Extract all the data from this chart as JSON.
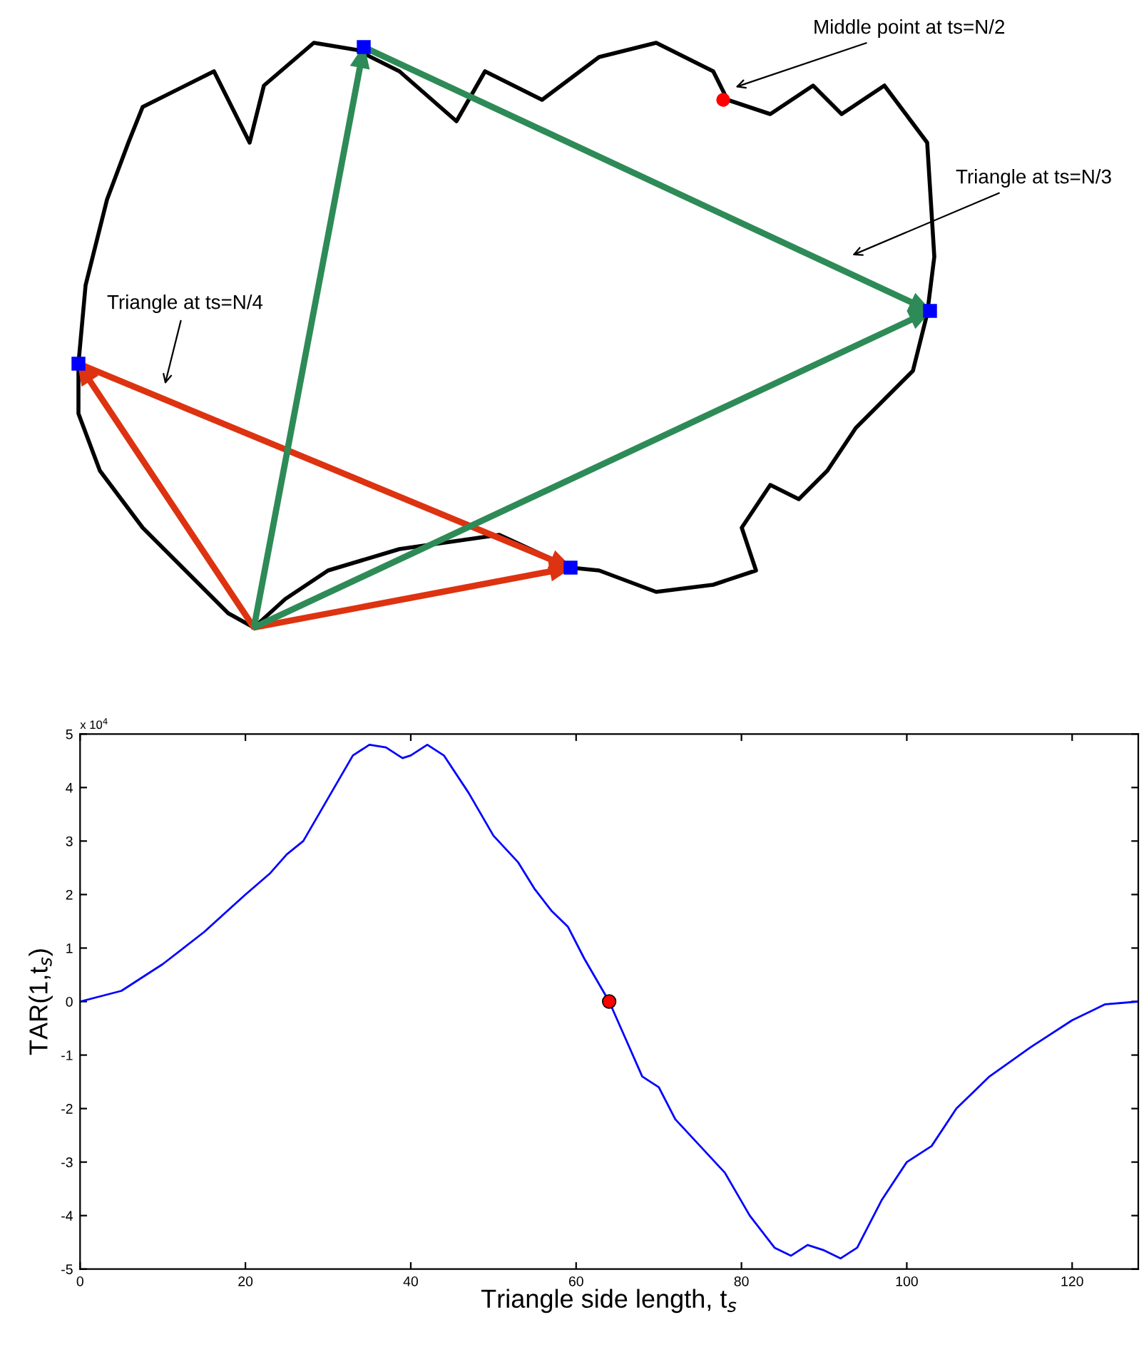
{
  "chart_data": [
    {
      "type": "other",
      "annotations": [
        "Middle point at ts=N/2",
        "Triangle at ts=N/3",
        "Triangle at ts=N/4"
      ]
    },
    {
      "type": "line",
      "xlabel": "Triangle side length, t$_{s}$",
      "ylabel": "TAR(1,t$_{s}$)",
      "annotations": [
        "x 10$^{4}$"
      ],
      "xlim": [
        0,
        128
      ],
      "xticks": [
        0,
        20,
        40,
        60,
        80,
        100,
        120
      ],
      "ylim": [
        -5,
        5
      ],
      "yticks": [
        -5,
        -4,
        -3,
        -2,
        -1,
        0,
        1,
        2,
        3,
        4,
        5
      ],
      "grid": false,
      "legend": false,
      "series": [
        {
          "type": "line",
          "color": "#0000ff",
          "x": [
            0,
            5,
            10,
            15,
            20,
            23,
            25,
            27,
            30,
            33,
            35,
            37,
            39,
            40,
            42,
            44,
            47,
            50,
            53,
            55,
            57,
            59,
            61,
            64,
            66,
            68,
            70,
            72,
            75,
            78,
            81,
            84,
            86,
            88,
            90,
            92,
            94,
            97,
            100,
            103,
            106,
            110,
            115,
            120,
            124,
            128
          ],
          "values": [
            0,
            0.2,
            0.7,
            1.3,
            2.0,
            2.4,
            2.75,
            3.0,
            3.8,
            4.6,
            4.8,
            4.75,
            4.55,
            4.6,
            4.8,
            4.6,
            3.9,
            3.1,
            2.6,
            2.1,
            1.7,
            1.4,
            0.8,
            0,
            -0.7,
            -1.4,
            -1.6,
            -2.2,
            -2.7,
            -3.2,
            -4.0,
            -4.6,
            -4.75,
            -4.55,
            -4.65,
            -4.8,
            -4.6,
            -3.7,
            -3.0,
            -2.7,
            -2.0,
            -1.4,
            -0.85,
            -0.35,
            -0.05,
            0
          ]
        },
        {
          "type": "scatter",
          "color": "#ff0000",
          "marker": "circle",
          "x": [
            64
          ],
          "values": [
            0
          ]
        }
      ]
    }
  ]
}
